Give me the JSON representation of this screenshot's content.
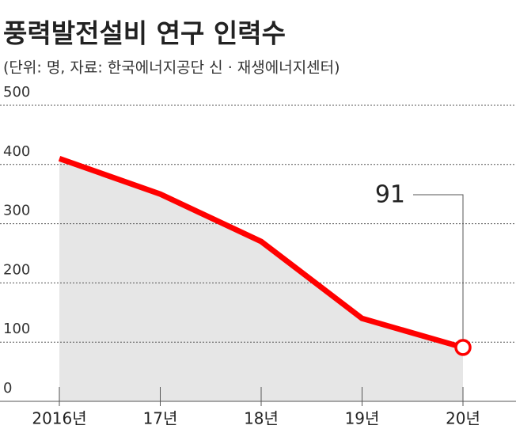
{
  "chart_data": {
    "type": "line",
    "title": "풍력발전설비 연구 인력수",
    "subtitle": "(단위: 명, 자료: 한국에너지공단 신 · 재생에너지센터)",
    "categories": [
      "2016년",
      "17년",
      "18년",
      "19년",
      "20년"
    ],
    "series": [
      {
        "name": "연구 인력수",
        "color": "#ff0000",
        "values": [
          410,
          350,
          270,
          140,
          91
        ]
      }
    ],
    "area_color": "#e6e6e6",
    "ylim": [
      0,
      500
    ],
    "yticks": [
      0,
      100,
      200,
      300,
      400,
      500
    ],
    "grid": true
  }
}
